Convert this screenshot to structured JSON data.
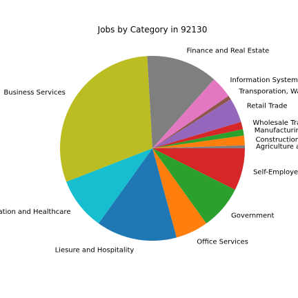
{
  "chart_data": {
    "type": "pie",
    "title": "Jobs by Category in 92130",
    "start_angle_deg": 0,
    "direction": "clockwise",
    "slices": [
      {
        "label": "Self-Employed",
        "value": 7.4,
        "color": "#d62728"
      },
      {
        "label": "Government",
        "value": 7.7,
        "color": "#2ca02c"
      },
      {
        "label": "Office Services",
        "value": 5.7,
        "color": "#ff7f0e"
      },
      {
        "label": "Liesure and Hospitality",
        "value": 14.1,
        "color": "#1f77b4"
      },
      {
        "label": "Education and Healthcare",
        "value": 9.2,
        "color": "#17becf"
      },
      {
        "label": "Business Services",
        "value": 30.0,
        "color": "#bcbd22"
      },
      {
        "label": "Finance and Real Estate",
        "value": 12.5,
        "color": "#7f7f7f"
      },
      {
        "label": "Information Systems",
        "value": 3.8,
        "color": "#e377c2"
      },
      {
        "label": "Transporation, Warehousing",
        "value": 0.7,
        "color": "#8c564b"
      },
      {
        "label": "Retail Trade",
        "value": 4.3,
        "color": "#9467bd"
      },
      {
        "label": "Wholesale Trade",
        "value": 1.3,
        "color": "#d62728"
      },
      {
        "label": "Manufacturing",
        "value": 1.1,
        "color": "#2ca02c"
      },
      {
        "label": "Construction",
        "value": 1.7,
        "color": "#ff7f0e"
      },
      {
        "label": "Agriculture and Mining",
        "value": 0.5,
        "color": "#7f7f7f"
      }
    ]
  }
}
